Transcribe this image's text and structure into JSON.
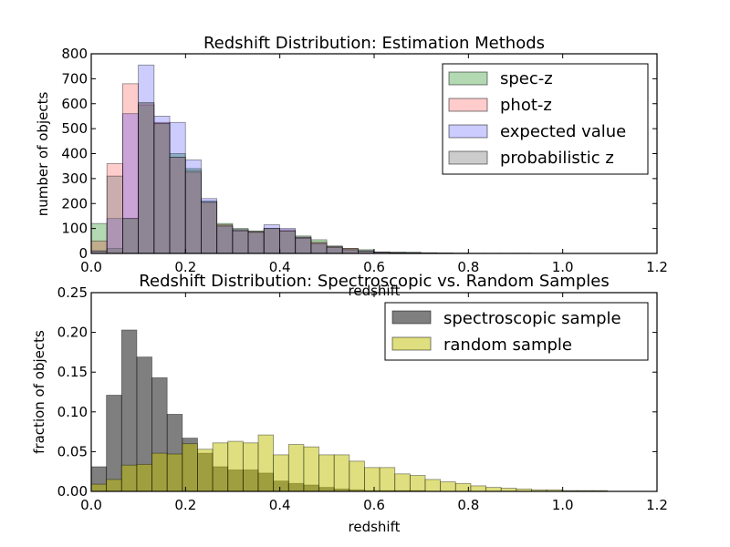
{
  "chart_data": [
    {
      "type": "bar",
      "histogram": true,
      "title": "Redshift Distribution: Estimation Methods",
      "xlabel": "redshift",
      "ylabel": "number of objects",
      "xlim": [
        0.0,
        1.2
      ],
      "ylim": [
        0,
        800
      ],
      "xticks": [
        "0.0",
        "0.2",
        "0.4",
        "0.6",
        "0.8",
        "1.0",
        "1.2"
      ],
      "yticks": [
        "0",
        "100",
        "200",
        "300",
        "400",
        "500",
        "600",
        "700",
        "800"
      ],
      "legend_position": "top-right",
      "grid": false,
      "bin_width": 0.0333,
      "bin_start": 0.0,
      "series": [
        {
          "name": "spec-z",
          "color": "#008000",
          "opacity": 0.3,
          "values": [
            120,
            20,
            140,
            595,
            520,
            400,
            340,
            210,
            120,
            100,
            90,
            100,
            90,
            70,
            55,
            30,
            20,
            15,
            5,
            5,
            5,
            3,
            2,
            2,
            1,
            1,
            1,
            1,
            0,
            0,
            0,
            0,
            0,
            0
          ]
        },
        {
          "name": "phot-z",
          "color": "#ff0000",
          "opacity": 0.2,
          "values": [
            50,
            360,
            680,
            600,
            525,
            385,
            325,
            205,
            115,
            95,
            88,
            100,
            95,
            65,
            45,
            28,
            20,
            10,
            5,
            3,
            2,
            1,
            1,
            0,
            0,
            0,
            0,
            0,
            0,
            0,
            0,
            0,
            0,
            0
          ]
        },
        {
          "name": "expected value",
          "color": "#0000ff",
          "opacity": 0.2,
          "values": [
            10,
            140,
            560,
            755,
            550,
            525,
            375,
            220,
            110,
            95,
            85,
            115,
            100,
            65,
            40,
            25,
            15,
            10,
            5,
            3,
            2,
            1,
            1,
            0,
            0,
            0,
            0,
            0,
            0,
            0,
            0,
            0,
            0,
            0
          ]
        },
        {
          "name": "probabilistic z",
          "color": "#808080",
          "opacity": 0.4,
          "values": [
            10,
            310,
            140,
            605,
            520,
            385,
            330,
            205,
            110,
            90,
            85,
            100,
            90,
            60,
            40,
            25,
            15,
            10,
            5,
            3,
            2,
            1,
            1,
            0,
            0,
            0,
            0,
            0,
            0,
            0,
            0,
            0,
            0,
            0
          ]
        }
      ]
    },
    {
      "type": "bar",
      "histogram": true,
      "title": "Redshift Distribution: Spectroscopic vs. Random Samples",
      "xlabel": "redshift",
      "ylabel": "fraction of objects",
      "xlim": [
        0.0,
        1.2
      ],
      "ylim": [
        0.0,
        0.25
      ],
      "xticks": [
        "0.0",
        "0.2",
        "0.4",
        "0.6",
        "0.8",
        "1.0",
        "1.2"
      ],
      "yticks": [
        "0.00",
        "0.05",
        "0.10",
        "0.15",
        "0.20",
        "0.25"
      ],
      "legend_position": "top-right",
      "grid": false,
      "bin_width": 0.0322,
      "bin_start": 0.0,
      "series": [
        {
          "name": "spectroscopic sample",
          "color": "#000000",
          "opacity": 0.5,
          "values": [
            0.031,
            0.121,
            0.203,
            0.169,
            0.143,
            0.097,
            0.067,
            0.048,
            0.031,
            0.027,
            0.027,
            0.023,
            0.013,
            0.01,
            0.008,
            0.005,
            0.003,
            0.002,
            0.001,
            0.001,
            0.001,
            0.001,
            0.0,
            0.0,
            0.0,
            0.0,
            0.0,
            0.0,
            0.0,
            0.0,
            0.0,
            0.0,
            0.0,
            0.0
          ]
        },
        {
          "name": "random sample",
          "color": "#bfbf00",
          "opacity": 0.5,
          "values": [
            0.009,
            0.015,
            0.033,
            0.034,
            0.048,
            0.047,
            0.06,
            0.053,
            0.061,
            0.063,
            0.061,
            0.071,
            0.046,
            0.059,
            0.056,
            0.046,
            0.046,
            0.038,
            0.03,
            0.03,
            0.022,
            0.02,
            0.015,
            0.012,
            0.01,
            0.007,
            0.005,
            0.004,
            0.003,
            0.002,
            0.002,
            0.001,
            0.001,
            0.001
          ]
        }
      ]
    }
  ]
}
